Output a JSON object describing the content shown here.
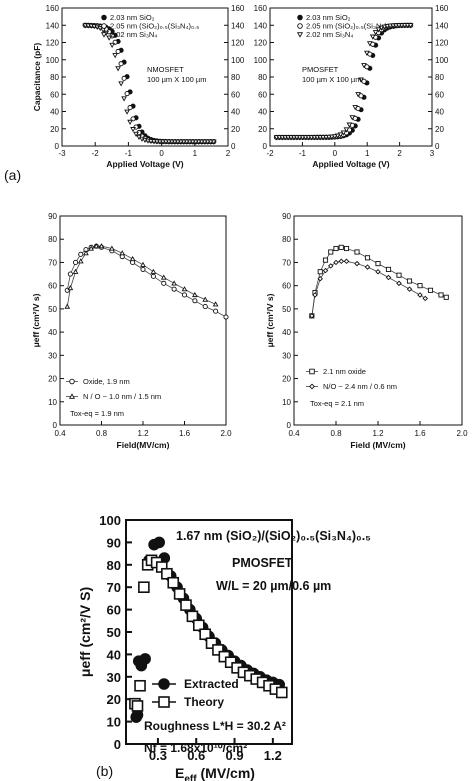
{
  "panel_labels": {
    "a": "(a)",
    "b": "(b)"
  },
  "chart_data": [
    {
      "type": "scatter",
      "id": "nmos",
      "xlabel": "Applied Voltage (V)",
      "ylabel": "Capacitance (pF)",
      "xlim": [
        -3,
        2
      ],
      "ylim": [
        0,
        160
      ],
      "xticks": [
        "-3",
        "-2",
        "-1",
        "0",
        "1",
        "2"
      ],
      "yticks": [
        "0",
        "20",
        "40",
        "60",
        "80",
        "100",
        "120",
        "140",
        "160"
      ],
      "right_yticks": [
        "0",
        "20",
        "40",
        "60",
        "80",
        "100",
        "120",
        "140",
        "160"
      ],
      "annotation": [
        "NMOSFET",
        "100 µm X 100 µm"
      ],
      "legend": [
        {
          "marker": "filled-circle",
          "label": "2.03 nm SiO₂"
        },
        {
          "marker": "open-circle",
          "label": "2.05 nm (SiO₂)₀.₅(Si₃N₄)₀.₅"
        },
        {
          "marker": "open-triangle-down",
          "label": "2.02 nm Si₃N₄"
        }
      ],
      "series": [
        {
          "marker": "filled-circle",
          "vfb": -1.0
        },
        {
          "marker": "open-circle",
          "vfb": -1.1
        },
        {
          "marker": "open-triangle-down",
          "vfb": -1.22
        }
      ],
      "polarity": "n",
      "cmax": 140,
      "cmin": 5,
      "vmin": -2.3,
      "vmax": 1.6
    },
    {
      "type": "scatter",
      "id": "pmos",
      "xlabel": "Applied Voltage (V)",
      "ylabel": "",
      "xlim": [
        -2,
        3
      ],
      "ylim": [
        0,
        160
      ],
      "xticks": [
        "-2",
        "-1",
        "0",
        "1",
        "2",
        "3"
      ],
      "yticks": [
        "0",
        "20",
        "40",
        "60",
        "80",
        "100",
        "120",
        "140",
        "160"
      ],
      "right_yticks": [
        "0",
        "20",
        "40",
        "60",
        "80",
        "100",
        "120",
        "140",
        "160"
      ],
      "annotation": [
        "PMOSFET",
        "100 µm X 100 µm"
      ],
      "legend": [
        {
          "marker": "filled-circle",
          "label": "2.03 nm SiO₂"
        },
        {
          "marker": "open-circle",
          "label": "2.05 nm (SiO₂)₀.₅(Si₃N₄)₀.₅"
        },
        {
          "marker": "open-triangle-down",
          "label": "2.02 nm Si₃N₄"
        }
      ],
      "series": [
        {
          "marker": "filled-circle",
          "vfb": 1.0
        },
        {
          "marker": "open-circle",
          "vfb": 0.9
        },
        {
          "marker": "open-triangle-down",
          "vfb": 0.8
        }
      ],
      "polarity": "p",
      "cmax": 140,
      "cmin": 10,
      "vmin": -1.8,
      "vmax": 2.4
    },
    {
      "type": "line",
      "id": "mob-n",
      "xlabel": "Field(MV/cm)",
      "ylabel": "μeff (cm²/V s)",
      "xlim": [
        0.4,
        2.0
      ],
      "ylim": [
        0,
        90
      ],
      "xticks": [
        "0.4",
        "0.8",
        "1.2",
        "1.6",
        "2.0"
      ],
      "yticks": [
        "0",
        "10",
        "20",
        "30",
        "40",
        "50",
        "60",
        "70",
        "80",
        "90"
      ],
      "legend": [
        {
          "marker": "open-circle",
          "label": "Oxide, 1.9 nm"
        },
        {
          "marker": "open-triangle",
          "label": "N / O ~ 1.0 nm / 1.5 nm"
        }
      ],
      "annotation": [
        "Tox-eq = 1.9 nm"
      ],
      "series": [
        {
          "marker": "open-circle",
          "x": [
            0.47,
            0.5,
            0.55,
            0.6,
            0.65,
            0.7,
            0.75,
            0.8,
            0.9,
            1.0,
            1.1,
            1.2,
            1.3,
            1.4,
            1.5,
            1.6,
            1.7,
            1.8,
            1.9,
            2.0
          ],
          "y": [
            58,
            65,
            70,
            73.5,
            75.5,
            76.5,
            77,
            76.5,
            75,
            72.5,
            70,
            67,
            64,
            61,
            58.5,
            56,
            53.5,
            51,
            49,
            46.5
          ]
        },
        {
          "marker": "open-triangle",
          "x": [
            0.47,
            0.5,
            0.55,
            0.6,
            0.65,
            0.7,
            0.75,
            0.8,
            0.9,
            1.0,
            1.1,
            1.2,
            1.3,
            1.4,
            1.5,
            1.6,
            1.7,
            1.8,
            1.9
          ],
          "y": [
            51,
            59,
            66,
            70.5,
            74,
            76,
            77,
            77,
            76,
            74,
            71.5,
            69,
            66,
            63.5,
            61,
            58.5,
            56,
            54,
            52
          ]
        }
      ]
    },
    {
      "type": "line",
      "id": "mob-p",
      "xlabel": "Field (MV/cm)",
      "ylabel": "μeff (cm²/V s)",
      "xlim": [
        0.4,
        2.0
      ],
      "ylim": [
        0,
        90
      ],
      "xticks": [
        "0.4",
        "0.8",
        "1.2",
        "1.6",
        "2.0"
      ],
      "yticks": [
        "0",
        "10",
        "20",
        "30",
        "40",
        "50",
        "60",
        "70",
        "80",
        "90"
      ],
      "legend": [
        {
          "marker": "open-square",
          "label": "2.1 nm oxide"
        },
        {
          "marker": "open-diamond",
          "label": "N/O ~ 2.4 nm / 0.6 nm"
        }
      ],
      "annotation": [
        "Tox-eq = 2.1 nm"
      ],
      "series": [
        {
          "marker": "open-square",
          "x": [
            0.57,
            0.6,
            0.65,
            0.7,
            0.75,
            0.8,
            0.85,
            0.9,
            1.0,
            1.1,
            1.2,
            1.3,
            1.4,
            1.5,
            1.6,
            1.7,
            1.8,
            1.85
          ],
          "y": [
            47,
            57,
            66,
            71,
            74.5,
            76,
            76.5,
            76,
            74.5,
            72,
            69.5,
            67,
            64.5,
            62,
            60,
            58,
            56,
            55
          ]
        },
        {
          "marker": "open-diamond",
          "x": [
            0.57,
            0.6,
            0.65,
            0.7,
            0.75,
            0.8,
            0.85,
            0.9,
            1.0,
            1.1,
            1.2,
            1.3,
            1.4,
            1.5,
            1.6,
            1.65
          ],
          "y": [
            47,
            56,
            63,
            66.5,
            68.5,
            70,
            70.5,
            70.5,
            69.5,
            68,
            66,
            63.5,
            61,
            58.5,
            56,
            54.5
          ]
        }
      ]
    },
    {
      "type": "scatter",
      "id": "mob-b",
      "xlabel": "E",
      "xlabel_sub": "eff",
      "xlabel_rest": " (MV/cm)",
      "ylabel": "μeff (cm²/V S)",
      "xlim": [
        0.05,
        1.35
      ],
      "ylim": [
        0,
        100
      ],
      "xticks": [
        {
          "v": 0.3,
          "t": "0.3"
        },
        {
          "v": 0.6,
          "t": "0.6"
        },
        {
          "v": 0.9,
          "t": "0.9"
        },
        {
          "v": 1.2,
          "t": "1.2"
        }
      ],
      "yticks": [
        "0",
        "10",
        "20",
        "30",
        "40",
        "50",
        "60",
        "70",
        "80",
        "90",
        "100"
      ],
      "title": "1.67 nm (SiO₂)/(SiO₂)₀.₅(Si₃N₄)₀.₅",
      "annotation": [
        "PMOSFET",
        "W/L = 20 µm/0.6 µm",
        "Roughness L*H = 30.2 A²",
        "Nf = 1.68x10¹⁰/cm²"
      ],
      "legend": [
        {
          "marker": "filled-circle",
          "label": "Extracted"
        },
        {
          "marker": "open-square",
          "label": "Theory"
        }
      ],
      "series": [
        {
          "name": "Extracted",
          "marker": "filled-circle",
          "x": [
            0.13,
            0.14,
            0.15,
            0.17,
            0.2,
            0.23,
            0.27,
            0.31,
            0.35,
            0.4,
            0.45,
            0.5,
            0.55,
            0.6,
            0.65,
            0.7,
            0.75,
            0.8,
            0.85,
            0.9,
            0.95,
            1.0,
            1.05,
            1.1,
            1.15,
            1.2,
            1.25
          ],
          "y": [
            12,
            13,
            37,
            35,
            38,
            82,
            89,
            90,
            83,
            75,
            70,
            65,
            60,
            56,
            52,
            48,
            45,
            42,
            39.5,
            37,
            35,
            33,
            31.5,
            30,
            28.5,
            27.5,
            26.5
          ]
        },
        {
          "name": "Theory",
          "marker": "open-square",
          "x": [
            0.12,
            0.14,
            0.16,
            0.19,
            0.22,
            0.25,
            0.29,
            0.33,
            0.37,
            0.42,
            0.47,
            0.52,
            0.57,
            0.62,
            0.67,
            0.72,
            0.77,
            0.82,
            0.87,
            0.92,
            0.97,
            1.02,
            1.07,
            1.12,
            1.17,
            1.22,
            1.27
          ],
          "y": [
            18,
            17,
            26,
            70,
            80,
            82,
            81,
            79,
            76,
            72,
            67,
            62,
            57,
            53,
            49,
            45,
            42,
            39,
            36.5,
            34,
            32,
            30.5,
            29,
            27.5,
            26,
            24.5,
            23
          ]
        }
      ]
    }
  ]
}
